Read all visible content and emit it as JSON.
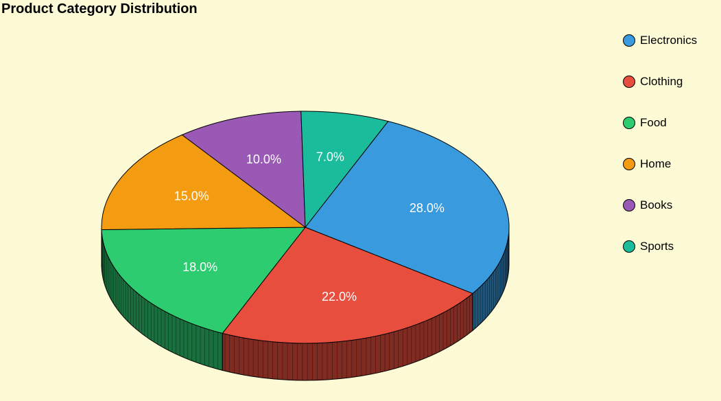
{
  "chart_data": {
    "type": "pie",
    "title": "Product Category Distribution",
    "categories": [
      "Electronics",
      "Clothing",
      "Food",
      "Home",
      "Books",
      "Sports"
    ],
    "values": [
      28.0,
      22.0,
      18.0,
      15.0,
      10.0,
      7.0
    ],
    "labels": [
      "28.0%",
      "22.0%",
      "18.0%",
      "15.0%",
      "10.0%",
      "7.0%"
    ],
    "colors": [
      "#3a9ade",
      "#e84e3d",
      "#2ecc71",
      "#f39c12",
      "#9b59b6",
      "#1abc9c"
    ],
    "legend_position": "top-right",
    "three_d": true
  }
}
